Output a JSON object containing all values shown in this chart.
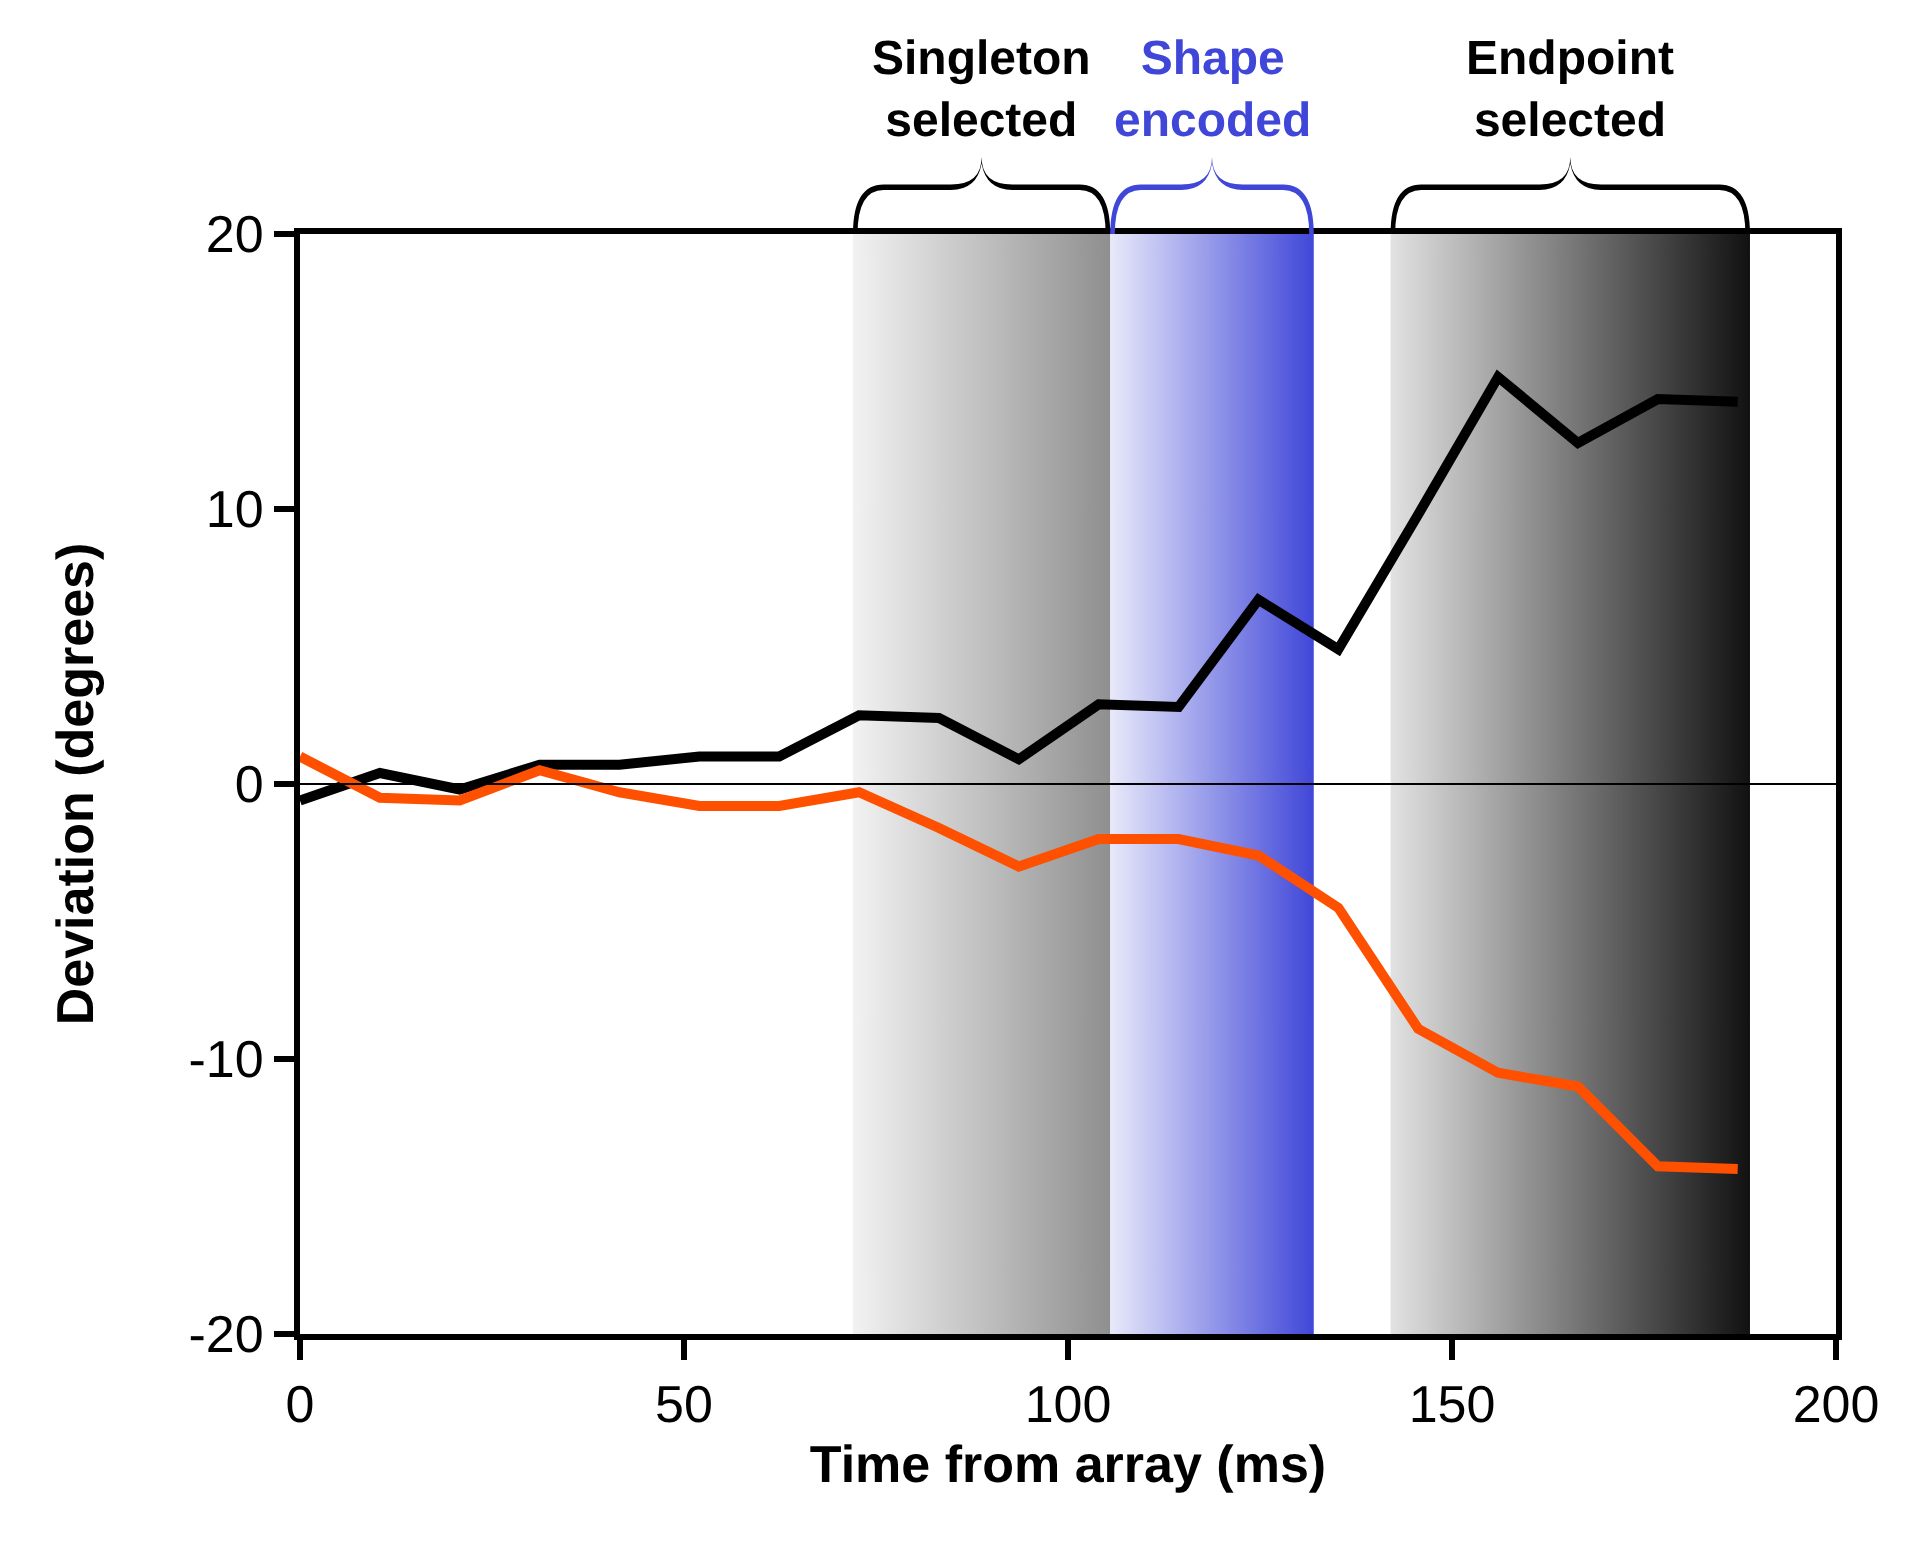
{
  "chart_data": {
    "type": "line",
    "xlabel": "Time from array (ms)",
    "ylabel": "Deviation (degrees)",
    "x": [
      0,
      10.4,
      20.8,
      31.2,
      41.6,
      52,
      62.4,
      72.8,
      83.2,
      93.6,
      104,
      114.4,
      124.8,
      135.2,
      145.6,
      156,
      166.4,
      176.8,
      187.2
    ],
    "series": [
      {
        "color": "#000000",
        "values": [
          -0.6,
          0.4,
          -0.2,
          0.7,
          0.7,
          1.0,
          1.0,
          2.5,
          2.4,
          0.9,
          2.9,
          2.8,
          6.7,
          4.9,
          9.8,
          14.8,
          12.4,
          14.0,
          13.9
        ]
      },
      {
        "color": "#ff5000",
        "values": [
          1.0,
          -0.5,
          -0.6,
          0.5,
          -0.3,
          -0.8,
          -0.8,
          -0.3,
          -1.6,
          -3.0,
          -2.0,
          -2.0,
          -2.6,
          -4.5,
          -8.9,
          -10.5,
          -11.0,
          -13.9,
          -14.0
        ]
      }
    ],
    "xlim": [
      0,
      200
    ],
    "xticks": [
      0,
      50,
      100,
      150,
      200
    ],
    "ylim": [
      -20,
      20
    ],
    "yticks": [
      -20,
      -10,
      0,
      10,
      20
    ],
    "ref_lines": [
      {
        "axis": "y",
        "value": 0,
        "color": "#000000"
      }
    ],
    "bands": [
      {
        "axis": "x",
        "from": 72,
        "to": 105.5,
        "label": "Singleton selected",
        "color": "#8f8f8f"
      },
      {
        "axis": "x",
        "from": 105.5,
        "to": 132,
        "label": "Shape encoded",
        "color": "#4047d8"
      },
      {
        "axis": "x",
        "from": 142,
        "to": 188.8,
        "label": "Endpoint selected",
        "color": "#111111"
      }
    ],
    "grid": false,
    "marker": "none",
    "line_style": "solid"
  }
}
